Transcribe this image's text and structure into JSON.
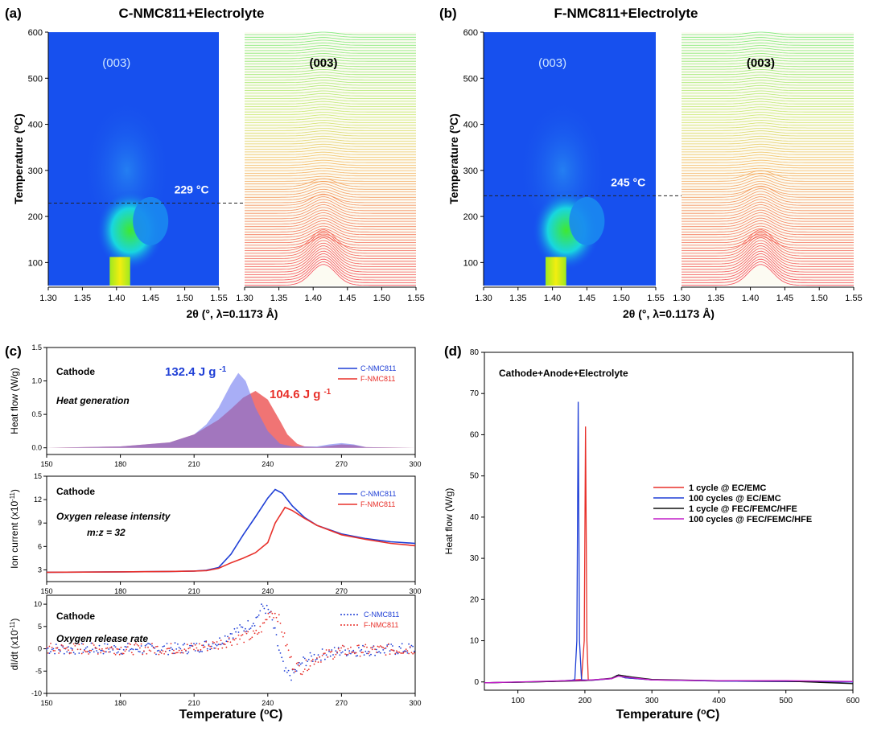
{
  "colors": {
    "blue": "#1f3fd6",
    "red": "#e8302a",
    "black": "#111111",
    "magenta": "#c21fc8",
    "heat_low": "#1750ee",
    "heat_mid": "#18d6e0",
    "heat_green": "#38e020",
    "heat_high": "#f2ee10"
  },
  "chart_data": [
    {
      "id": "a",
      "type": "heatmap",
      "label": "(a)",
      "title": "C-NMC811+Electrolyte",
      "xlabel": "2θ (°, λ=0.1173 Å)",
      "ylabel": "Temperature (°C)",
      "xlim": [
        1.3,
        1.55
      ],
      "ylim": [
        50,
        600
      ],
      "xticks": [
        "1.30",
        "1.35",
        "1.40",
        "1.45",
        "1.50",
        "1.55"
      ],
      "yticks": [
        "100",
        "200",
        "300",
        "400",
        "500",
        "600"
      ],
      "peak_label": "(003)",
      "transition_temp": 229,
      "transition_label": "229 °C"
    },
    {
      "id": "b",
      "type": "heatmap",
      "label": "(b)",
      "title": "F-NMC811+Electrolyte",
      "xlabel": "2θ (°, λ=0.1173 Å)",
      "ylabel": "Temperature (°C)",
      "xlim": [
        1.3,
        1.55
      ],
      "ylim": [
        50,
        600
      ],
      "xticks": [
        "1.30",
        "1.35",
        "1.40",
        "1.45",
        "1.50",
        "1.55"
      ],
      "yticks": [
        "100",
        "200",
        "300",
        "400",
        "500",
        "600"
      ],
      "peak_label": "(003)",
      "transition_temp": 245,
      "transition_label": "245 °C"
    },
    {
      "id": "c1",
      "type": "area",
      "label": "(c)",
      "ylabel": "Heat flow (W/g)",
      "xlim": [
        150,
        300
      ],
      "ylim": [
        -0.1,
        1.5
      ],
      "xticks": [
        "150",
        "180",
        "210",
        "240",
        "270",
        "300"
      ],
      "yticks": [
        "0.0",
        "0.5",
        "1.0",
        "1.5"
      ],
      "title": "Cathode",
      "subtitle": "Heat generation",
      "annotations": [
        {
          "text": "132.4 J g",
          "sup": "-1",
          "color": "blue"
        },
        {
          "text": "104.6 J g",
          "sup": "-1",
          "color": "red"
        }
      ],
      "series": [
        {
          "name": "C-NMC811",
          "color": "blue",
          "x": [
            150,
            180,
            200,
            210,
            215,
            220,
            225,
            228,
            231,
            235,
            240,
            245,
            250,
            260,
            265,
            270,
            275,
            280,
            300
          ],
          "y": [
            0,
            0.02,
            0.08,
            0.2,
            0.35,
            0.6,
            0.95,
            1.12,
            1.0,
            0.6,
            0.25,
            0.06,
            0.02,
            0.02,
            0.05,
            0.07,
            0.05,
            0.01,
            0
          ]
        },
        {
          "name": "F-NMC811",
          "color": "red",
          "x": [
            150,
            180,
            200,
            210,
            220,
            225,
            230,
            235,
            240,
            245,
            248,
            252,
            255,
            260,
            265,
            270,
            275,
            280,
            300
          ],
          "y": [
            0,
            0.02,
            0.08,
            0.2,
            0.42,
            0.58,
            0.75,
            0.85,
            0.72,
            0.4,
            0.2,
            0.06,
            0.02,
            0.01,
            0.03,
            0.05,
            0.04,
            0.01,
            0
          ]
        }
      ]
    },
    {
      "id": "c2",
      "type": "line",
      "ylabel": "Ion current (x10",
      "ylabel_sup": "-11",
      "ylabel_end": ")",
      "xlim": [
        150,
        300
      ],
      "ylim": [
        1.5,
        15
      ],
      "xticks": [
        "150",
        "180",
        "210",
        "240",
        "270",
        "300"
      ],
      "yticks": [
        "3",
        "6",
        "9",
        "12",
        "15"
      ],
      "title": "Cathode",
      "subtitle": "Oxygen release intensity",
      "note": "m:z = 32",
      "series": [
        {
          "name": "C-NMC811",
          "color": "blue",
          "x": [
            150,
            180,
            200,
            210,
            215,
            220,
            225,
            230,
            235,
            240,
            243,
            246,
            250,
            255,
            260,
            270,
            280,
            290,
            300
          ],
          "y": [
            2.7,
            2.75,
            2.8,
            2.85,
            2.95,
            3.3,
            5.0,
            7.5,
            9.8,
            12.2,
            13.3,
            12.8,
            11.2,
            9.7,
            8.7,
            7.6,
            7.0,
            6.6,
            6.4
          ]
        },
        {
          "name": "F-NMC811",
          "color": "red",
          "x": [
            150,
            180,
            200,
            210,
            215,
            220,
            225,
            230,
            235,
            240,
            243,
            247,
            250,
            255,
            260,
            270,
            280,
            290,
            300
          ],
          "y": [
            2.7,
            2.75,
            2.8,
            2.85,
            2.9,
            3.2,
            3.9,
            4.5,
            5.2,
            6.5,
            9.0,
            11.0,
            10.6,
            9.6,
            8.7,
            7.5,
            6.9,
            6.4,
            6.1
          ]
        }
      ]
    },
    {
      "id": "c3",
      "type": "scatter",
      "ylabel": "dI/dt (x10",
      "ylabel_sup": "-11",
      "ylabel_end": ")",
      "xlabel": "Temperature (°C)",
      "xlim": [
        150,
        300
      ],
      "ylim": [
        -10,
        12
      ],
      "xticks": [
        "150",
        "180",
        "210",
        "240",
        "270",
        "300"
      ],
      "yticks": [
        "-10",
        "-5",
        "0",
        "5",
        "10"
      ],
      "title": "Cathode",
      "subtitle": "Oxygen release rate",
      "series": [
        {
          "name": "C-NMC811",
          "color": "blue",
          "x": [
            150,
            200,
            210,
            220,
            225,
            230,
            235,
            238,
            241,
            244,
            247,
            250,
            254,
            260,
            270,
            300
          ],
          "y": [
            0,
            0,
            0.2,
            1.5,
            3.5,
            4.5,
            6.5,
            9.5,
            8.0,
            1.0,
            -5.5,
            -6.0,
            -3.0,
            -1.5,
            -0.5,
            0
          ]
        },
        {
          "name": "F-NMC811",
          "color": "red",
          "x": [
            150,
            200,
            210,
            220,
            225,
            230,
            235,
            238,
            241,
            244,
            247,
            250,
            254,
            260,
            270,
            300
          ],
          "y": [
            0,
            0,
            0.2,
            1.0,
            2.0,
            2.5,
            3.0,
            5.0,
            8.5,
            7.5,
            2.0,
            -3.5,
            -4.5,
            -2.0,
            -0.5,
            0
          ]
        }
      ]
    },
    {
      "id": "d",
      "type": "line",
      "label": "(d)",
      "title": "Cathode+Anode+Electrolyte",
      "xlabel": "Temperature (°C)",
      "ylabel": "Heat flow (W/g)",
      "xlim": [
        50,
        600
      ],
      "ylim": [
        -2,
        80
      ],
      "xticks": [
        "100",
        "200",
        "300",
        "400",
        "500",
        "600"
      ],
      "yticks": [
        "0",
        "10",
        "20",
        "30",
        "40",
        "50",
        "60",
        "70",
        "80"
      ],
      "series": [
        {
          "name": "1 cycle @ EC/EMC",
          "color": "red",
          "x": [
            50,
            150,
            180,
            195,
            199,
            201,
            203,
            205,
            210,
            240,
            248,
            260,
            300,
            400,
            500,
            600
          ],
          "y": [
            -0.2,
            0.1,
            0.4,
            0.6,
            10,
            62,
            10,
            0.5,
            0.4,
            0.8,
            1.6,
            1.0,
            0.5,
            0.2,
            0.1,
            0
          ]
        },
        {
          "name": "100 cycles @ EC/EMC",
          "color": "blue",
          "x": [
            50,
            150,
            180,
            185,
            188,
            190,
            192,
            195,
            210,
            240,
            248,
            260,
            300,
            400,
            500,
            600
          ],
          "y": [
            -0.2,
            0.1,
            0.4,
            0.6,
            10,
            68,
            10,
            0.5,
            0.4,
            0.8,
            1.6,
            1.0,
            0.5,
            0.2,
            0.1,
            0
          ]
        },
        {
          "name": "1 cycle @ FEC/FEMC/HFE",
          "color": "black",
          "x": [
            50,
            150,
            200,
            240,
            250,
            270,
            300,
            400,
            500,
            600
          ],
          "y": [
            -0.2,
            0.1,
            0.3,
            0.9,
            1.7,
            1.2,
            0.6,
            0.3,
            0.2,
            -0.4
          ]
        },
        {
          "name": "100 cycles @ FEC/FEMC/HFE",
          "color": "magenta",
          "x": [
            50,
            150,
            200,
            240,
            250,
            270,
            300,
            400,
            500,
            600
          ],
          "y": [
            -0.2,
            0.2,
            0.4,
            0.8,
            1.4,
            1.0,
            0.5,
            0.3,
            0.3,
            0.1
          ]
        }
      ]
    }
  ]
}
